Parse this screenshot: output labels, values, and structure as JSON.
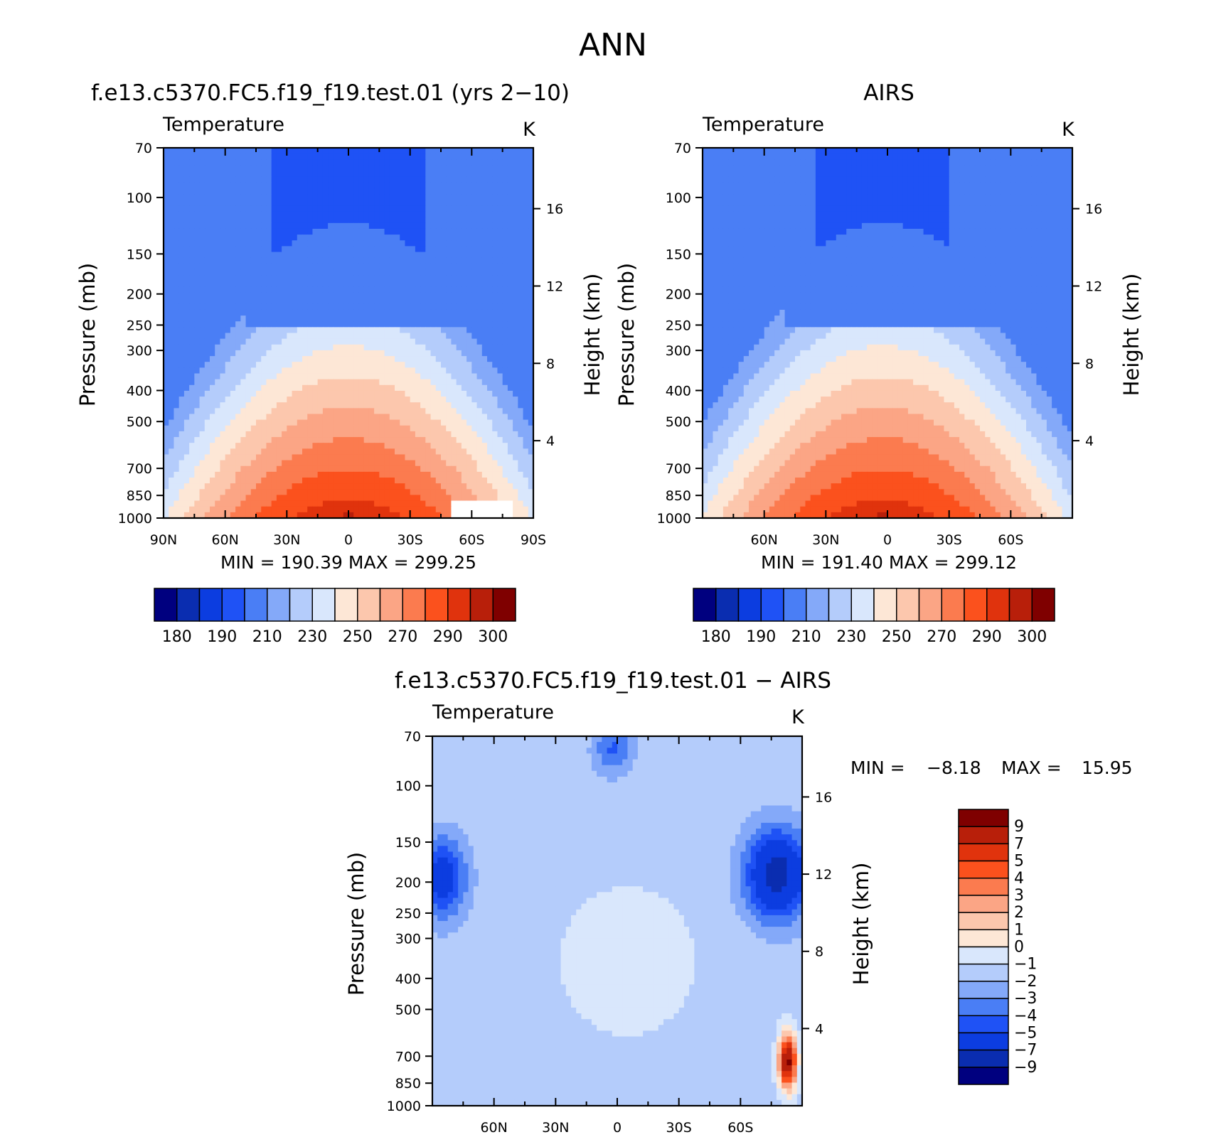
{
  "figure_title": "ANN",
  "chart_data": [
    {
      "type": "heatmap",
      "panel": "model",
      "title": "f.e13.c5370.FC5.f19_f19.test.01 (yrs 2−10)",
      "subtitle_left": "Temperature",
      "subtitle_right": "K",
      "ylabel": "Pressure (mb)",
      "ylabel_right": "Height (km)",
      "x_ticks": [
        "90N",
        "60N",
        "30N",
        "0",
        "30S",
        "60S",
        "90S"
      ],
      "x_tick_values": [
        90,
        60,
        30,
        0,
        -30,
        -60,
        -90
      ],
      "xlim": [
        90,
        -90
      ],
      "y_ticks": [
        70,
        100,
        150,
        200,
        250,
        300,
        400,
        500,
        700,
        850,
        1000
      ],
      "ylim": [
        70,
        1000
      ],
      "y_scale": "log",
      "height_ticks": [
        16,
        12,
        8,
        4
      ],
      "stats": "MIN = 190.39 MAX = 299.25",
      "min": 190.39,
      "max": 299.25,
      "colorbar_labels": [
        "180",
        "190",
        "210",
        "230",
        "250",
        "270",
        "290",
        "300"
      ],
      "field": {
        "bg": 210,
        "peak": 296,
        "peak_lat": 0,
        "lat_width": 0.9,
        "trop_min": 190,
        "cold_pole_south": true,
        "mask_sw": true
      }
    },
    {
      "type": "heatmap",
      "panel": "obs",
      "title": "AIRS",
      "subtitle_left": "Temperature",
      "subtitle_right": "K",
      "ylabel": "Pressure (mb)",
      "ylabel_right": "Height (km)",
      "x_ticks": [
        "60N",
        "30N",
        "0",
        "30S",
        "60S"
      ],
      "x_tick_values": [
        60,
        30,
        0,
        -30,
        -60
      ],
      "xlim": [
        90,
        -90
      ],
      "y_ticks": [
        70,
        100,
        150,
        200,
        250,
        300,
        400,
        500,
        700,
        850,
        1000
      ],
      "ylim": [
        70,
        1000
      ],
      "y_scale": "log",
      "height_ticks": [
        16,
        12,
        8,
        4
      ],
      "stats": "MIN = 191.40 MAX = 299.12",
      "min": 191.4,
      "max": 299.12,
      "colorbar_labels": [
        "180",
        "190",
        "210",
        "230",
        "250",
        "270",
        "290",
        "300"
      ],
      "field": {
        "bg": 210,
        "peak": 296,
        "peak_lat": 2,
        "lat_width": 0.92,
        "trop_min": 191,
        "cold_pole_south": true,
        "mask_sw": false
      }
    },
    {
      "type": "heatmap",
      "panel": "difference",
      "title": "f.e13.c5370.FC5.f19_f19.test.01 − AIRS",
      "subtitle_left": "Temperature",
      "subtitle_right": "K",
      "ylabel": "Pressure (mb)",
      "ylabel_right": "Height (km)",
      "x_ticks": [
        "60N",
        "30N",
        "0",
        "30S",
        "60S"
      ],
      "x_tick_values": [
        60,
        30,
        0,
        -30,
        -60
      ],
      "xlim": [
        90,
        -90
      ],
      "y_ticks": [
        70,
        100,
        150,
        200,
        250,
        300,
        400,
        500,
        700,
        850,
        1000
      ],
      "ylim": [
        70,
        1000
      ],
      "y_scale": "log",
      "height_ticks": [
        16,
        12,
        8,
        4
      ],
      "stats_min_label": "MIN =",
      "stats_min": "−8.18",
      "stats_max_label": "MAX =",
      "stats_max": "15.95",
      "min": -8.18,
      "max": 15.95,
      "colorbar_labels": [
        "9",
        "7",
        "5",
        "4",
        "3",
        "2",
        "1",
        "0",
        "−1",
        "−2",
        "−3",
        "−4",
        "−5",
        "−7",
        "−9"
      ]
    }
  ],
  "colors": {
    "abs_bins": [
      "#00007f",
      "#0a2db0",
      "#0c3de0",
      "#1f52f5",
      "#4a7ef5",
      "#84a9f9",
      "#b4ccfb",
      "#d9e7fc",
      "#fde7d6",
      "#fcc7ad",
      "#fba585",
      "#fb7b4f",
      "#fb511d",
      "#e0330d",
      "#b81f0a",
      "#7f0000"
    ],
    "diff_bins": [
      "#7f0000",
      "#b81f0a",
      "#e0330d",
      "#fb511d",
      "#fb7b4f",
      "#fba585",
      "#fcc7ad",
      "#fde7d6",
      "#d9e7fc",
      "#b4ccfb",
      "#84a9f9",
      "#4a7ef5",
      "#1f52f5",
      "#0c3de0",
      "#0a2db0",
      "#00007f"
    ]
  }
}
